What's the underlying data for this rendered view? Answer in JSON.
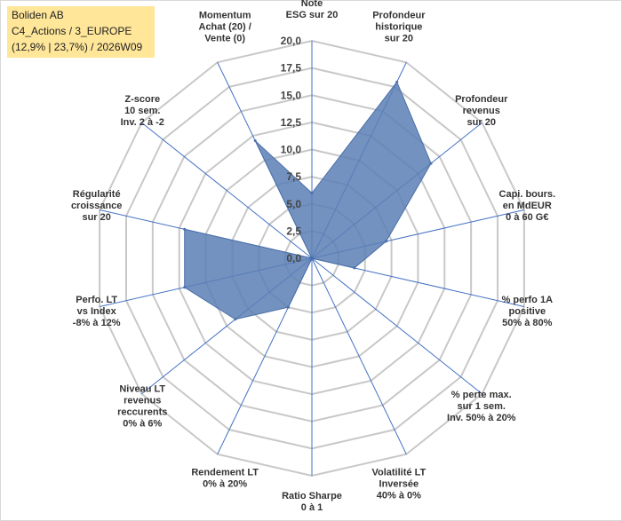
{
  "title_box": {
    "line1": "Boliden AB",
    "line2": "C4_Actions / 3_EUROPE",
    "line3": "(12,9% | 23,7%) / 2026W09"
  },
  "chart_data": {
    "type": "radar",
    "title": "Boliden AB",
    "rmin": 0,
    "rmax": 20,
    "rings": 8,
    "tick_labels": [
      "0,0",
      "2,5",
      "5,0",
      "7,5",
      "10,0",
      "12,5",
      "15,0",
      "17,5",
      "20,0"
    ],
    "axes": [
      {
        "label": [
          "Note",
          "ESG sur 20"
        ],
        "value": 6
      },
      {
        "label": [
          "Profondeur",
          "historique",
          "sur 20"
        ],
        "value": 18
      },
      {
        "label": [
          "Profondeur",
          "revenus",
          "sur 20"
        ],
        "value": 14
      },
      {
        "label": [
          "Capi. bours.",
          "en MdEUR",
          "0 à 60 G€"
        ],
        "value": 7
      },
      {
        "label": [
          "% perfo 1A",
          "positive",
          "50% à 80%"
        ],
        "value": 4
      },
      {
        "label": [
          "% perte max.",
          "sur 1 sem.",
          "Inv. 50% à 20%"
        ],
        "value": 0
      },
      {
        "label": [
          "Volatilité LT",
          "Inversée",
          "40% à 0%"
        ],
        "value": 0
      },
      {
        "label": [
          "Ratio Sharpe",
          "0 à 1"
        ],
        "value": 0
      },
      {
        "label": [
          "Rendement LT",
          "0% à 20%"
        ],
        "value": 5
      },
      {
        "label": [
          "Niveau LT",
          "revenus",
          "reccurents",
          "0% à 6%"
        ],
        "value": 9
      },
      {
        "label": [
          "Perfo. LT",
          "vs Index",
          "-8% à 12%"
        ],
        "value": 12
      },
      {
        "label": [
          "Régularité",
          "croissance",
          "sur 20"
        ],
        "value": 12
      },
      {
        "label": [
          "Z-score",
          "10 sem.",
          "Inv. 2 à -2"
        ],
        "value": 0
      },
      {
        "label": [
          "Momentum",
          "Achat (20) /",
          "Vente (0)"
        ],
        "value": 12
      }
    ],
    "series": [
      {
        "name": "Boliden AB",
        "color": "#5b7fb5"
      }
    ]
  }
}
